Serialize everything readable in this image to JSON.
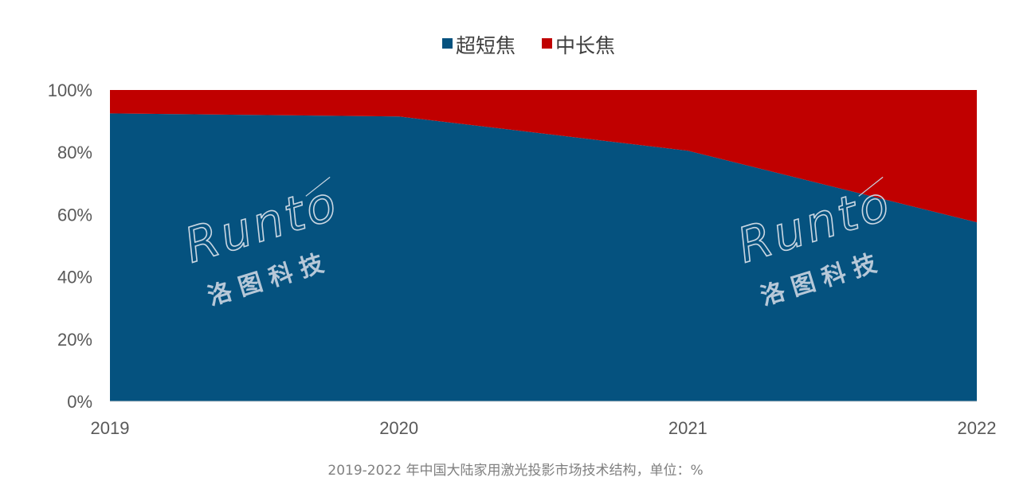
{
  "chart_data": {
    "type": "area",
    "stacked": true,
    "percent": true,
    "x": [
      "2019",
      "2020",
      "2021",
      "2022"
    ],
    "series": [
      {
        "name": "超短焦",
        "values": [
          92.5,
          91.5,
          80.5,
          57.5
        ],
        "color": "#05527f"
      },
      {
        "name": "中长焦",
        "values": [
          7.5,
          8.5,
          19.5,
          42.5
        ],
        "color": "#c00000"
      }
    ],
    "y_ticks": [
      "0%",
      "20%",
      "40%",
      "60%",
      "80%",
      "100%"
    ],
    "ylim": [
      0,
      100
    ],
    "legend_position": "top-center",
    "grid": false
  },
  "caption": "2019-2022 年中国大陆家用激光投影市场技术结构，单位：%",
  "watermark": {
    "latin": "Runto",
    "cjk": "洛图科技"
  }
}
